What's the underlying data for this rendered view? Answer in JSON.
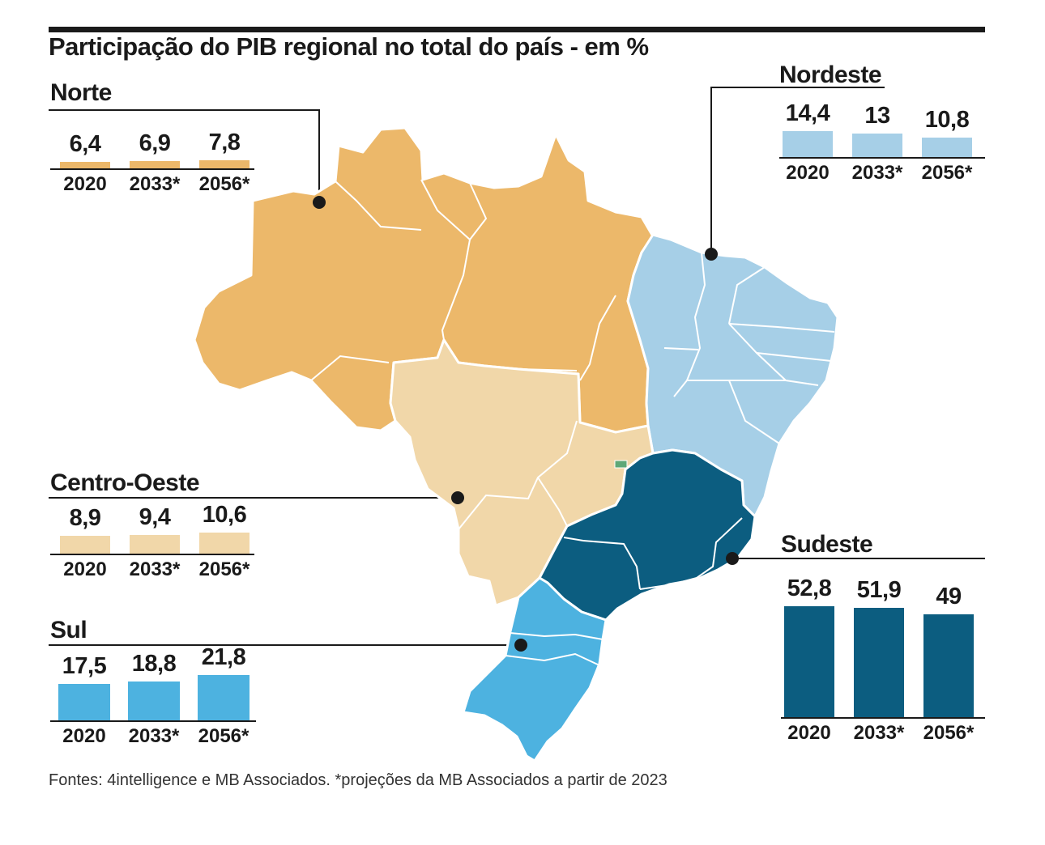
{
  "chart_data": {
    "type": "bar",
    "title": "Participação do PIB regional no total do país - em %",
    "categories": [
      "2020",
      "2033*",
      "2056*"
    ],
    "series": [
      {
        "name": "Norte",
        "values": [
          6.4,
          6.9,
          7.8
        ],
        "labels": [
          "6,4",
          "6,9",
          "7,8"
        ],
        "color": "#ecb86a"
      },
      {
        "name": "Nordeste",
        "values": [
          14.4,
          13,
          10.8
        ],
        "labels": [
          "14,4",
          "13",
          "10,8"
        ],
        "color": "#a6cfe7"
      },
      {
        "name": "Centro-Oeste",
        "values": [
          8.9,
          9.4,
          10.6
        ],
        "labels": [
          "8,9",
          "9,4",
          "10,6"
        ],
        "color": "#f1d7a9"
      },
      {
        "name": "Sul",
        "values": [
          17.5,
          18.8,
          21.8
        ],
        "labels": [
          "17,5",
          "18,8",
          "21,8"
        ],
        "color": "#4db2e0"
      },
      {
        "name": "Sudeste",
        "values": [
          52.8,
          51.9,
          49
        ],
        "labels": [
          "52,8",
          "51,9",
          "49"
        ],
        "color": "#0c5d80"
      }
    ],
    "footnote": "Fontes: 4intelligence e MB Associados. *projeções da MB Associados a partir de 2023"
  }
}
